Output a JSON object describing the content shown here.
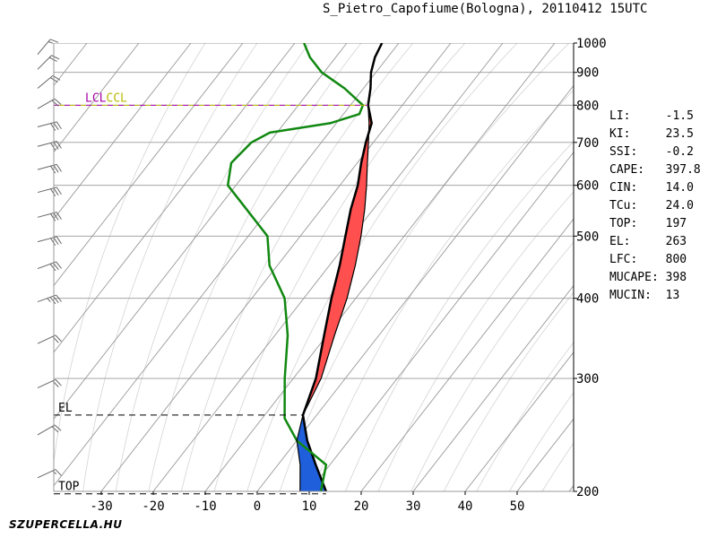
{
  "title": "S_Pietro_Capofiume(Bologna), 20110412 15UTC",
  "logo": "SZUPERCELLA.HU",
  "indices": [
    {
      "key": "LI:",
      "value": "-1.5"
    },
    {
      "key": "KI:",
      "value": "23.5"
    },
    {
      "key": "SSI:",
      "value": "-0.2"
    },
    {
      "key": "CAPE:",
      "value": "397.8"
    },
    {
      "key": "CIN:",
      "value": "14.0"
    },
    {
      "key": "TCu:",
      "value": "24.0"
    },
    {
      "key": "TOP:",
      "value": "197"
    },
    {
      "key": "EL:",
      "value": "263"
    },
    {
      "key": "LFC:",
      "value": "800"
    },
    {
      "key": "MUCAPE:",
      "value": "398"
    },
    {
      "key": "MUCIN:",
      "value": "13"
    }
  ],
  "chart_data": {
    "type": "line",
    "title": "S_Pietro_Capofiume(Bologna), 20110412 15UTC",
    "x_axis": {
      "range": [
        -40,
        60
      ],
      "ticks": [
        -30,
        -20,
        -10,
        0,
        10,
        20,
        30,
        40,
        50
      ],
      "skew": true
    },
    "y_axis": {
      "scale": "log",
      "range": [
        1000,
        200
      ],
      "ticks": [
        200,
        300,
        400,
        500,
        600,
        700,
        800,
        900,
        1000
      ]
    },
    "grid": true,
    "levels": [
      {
        "label": "TOP",
        "pressure": 197,
        "color": "#000000"
      },
      {
        "label": "EL",
        "pressure": 263,
        "color": "#000000"
      },
      {
        "label": "LCL",
        "pressure": 800,
        "color": "#aa00aa"
      },
      {
        "label": "CCL",
        "pressure": 800,
        "color": "#b8b800"
      }
    ],
    "series": [
      {
        "key": "temperature",
        "color": "#000000",
        "points": [
          [
            1000,
            24
          ],
          [
            950,
            20.5
          ],
          [
            900,
            17.5
          ],
          [
            850,
            15
          ],
          [
            800,
            12
          ],
          [
            750,
            10
          ],
          [
            700,
            6
          ],
          [
            650,
            2
          ],
          [
            600,
            -2
          ],
          [
            550,
            -7
          ],
          [
            500,
            -12
          ],
          [
            450,
            -17.5
          ],
          [
            400,
            -24
          ],
          [
            350,
            -31
          ],
          [
            300,
            -39
          ],
          [
            263,
            -47
          ],
          [
            240,
            -50
          ],
          [
            220,
            -52
          ],
          [
            200,
            -54
          ]
        ]
      },
      {
        "key": "dewpoint",
        "color": "#118811",
        "points": [
          [
            1000,
            9
          ],
          [
            950,
            8
          ],
          [
            900,
            8
          ],
          [
            850,
            10
          ],
          [
            800,
            11
          ],
          [
            775,
            9
          ],
          [
            750,
            2
          ],
          [
            725,
            -11
          ],
          [
            700,
            -16
          ],
          [
            650,
            -23
          ],
          [
            600,
            -27
          ],
          [
            550,
            -27
          ],
          [
            500,
            -27
          ],
          [
            450,
            -31
          ],
          [
            400,
            -33
          ],
          [
            350,
            -38
          ],
          [
            300,
            -45
          ],
          [
            260,
            -51
          ],
          [
            240,
            -52
          ],
          [
            220,
            -50
          ],
          [
            200,
            -55
          ]
        ]
      },
      {
        "key": "parcel",
        "color": "#000000",
        "points": [
          [
            1000,
            24
          ],
          [
            950,
            20.5
          ],
          [
            900,
            17.5
          ],
          [
            850,
            15
          ],
          [
            800,
            12
          ],
          [
            750,
            9.5
          ],
          [
            700,
            6.5
          ],
          [
            650,
            3.2
          ],
          [
            600,
            -0.3
          ],
          [
            550,
            -4.3
          ],
          [
            500,
            -9
          ],
          [
            450,
            -14.5
          ],
          [
            400,
            -21
          ],
          [
            350,
            -29
          ],
          [
            300,
            -38
          ],
          [
            263,
            -47
          ],
          [
            240,
            -52
          ],
          [
            220,
            -55
          ],
          [
            200,
            -59
          ]
        ]
      }
    ],
    "shading": [
      {
        "type": "CAPE",
        "color": "#ff4f4f",
        "from": 800,
        "to": 263
      },
      {
        "type": "area-above-EL",
        "color": "#1f5fdc",
        "from": 263,
        "to": 200
      }
    ],
    "wind_barbs": [
      {
        "pressure": 210,
        "speed_kt": 15,
        "dir_deg": 245
      },
      {
        "pressure": 245,
        "speed_kt": 20,
        "dir_deg": 240
      },
      {
        "pressure": 290,
        "speed_kt": 20,
        "dir_deg": 245
      },
      {
        "pressure": 340,
        "speed_kt": 20,
        "dir_deg": 245
      },
      {
        "pressure": 395,
        "speed_kt": 35,
        "dir_deg": 250
      },
      {
        "pressure": 445,
        "speed_kt": 30,
        "dir_deg": 250
      },
      {
        "pressure": 490,
        "speed_kt": 30,
        "dir_deg": 255
      },
      {
        "pressure": 535,
        "speed_kt": 30,
        "dir_deg": 255
      },
      {
        "pressure": 585,
        "speed_kt": 30,
        "dir_deg": 255
      },
      {
        "pressure": 635,
        "speed_kt": 30,
        "dir_deg": 255
      },
      {
        "pressure": 690,
        "speed_kt": 30,
        "dir_deg": 255
      },
      {
        "pressure": 740,
        "speed_kt": 30,
        "dir_deg": 255
      },
      {
        "pressure": 790,
        "speed_kt": 20,
        "dir_deg": 240
      },
      {
        "pressure": 850,
        "speed_kt": 20,
        "dir_deg": 230
      },
      {
        "pressure": 910,
        "speed_kt": 20,
        "dir_deg": 225
      },
      {
        "pressure": 960,
        "speed_kt": 15,
        "dir_deg": 220
      }
    ]
  }
}
